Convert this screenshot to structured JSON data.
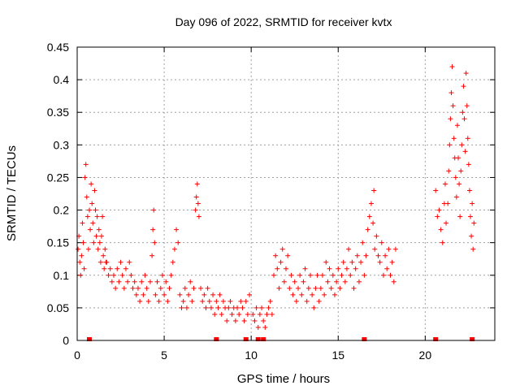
{
  "chart_data": {
    "type": "scatter",
    "title": "Day 096 of 2022, SRMTID for receiver kvtx",
    "xlabel": "GPS time / hours",
    "ylabel": "SRMTID / TECUs",
    "xlim": [
      0,
      24
    ],
    "ylim": [
      0,
      0.45
    ],
    "xticks": [
      0,
      5,
      10,
      15,
      20
    ],
    "xtick_labels": [
      "0",
      "5",
      "10",
      "15",
      "20"
    ],
    "yticks": [
      0,
      0.05,
      0.1,
      0.15,
      0.2,
      0.25,
      0.3,
      0.35,
      0.4,
      0.45
    ],
    "ytick_labels": [
      "0",
      "0.05",
      "0.1",
      "0.15",
      "0.2",
      "0.25",
      "0.3",
      "0.35",
      "0.4",
      "0.45"
    ],
    "grid": true,
    "legend": "none",
    "colors": {
      "points": "#ff0000",
      "grid": "#a0a0a0"
    },
    "marker": "plus",
    "series": [
      {
        "values": [
          [
            0.05,
            0.14
          ],
          [
            0.1,
            0.16
          ],
          [
            0.15,
            0.12
          ],
          [
            0.2,
            0.1
          ],
          [
            0.25,
            0.13
          ],
          [
            0.3,
            0.18
          ],
          [
            0.35,
            0.15
          ],
          [
            0.4,
            0.11
          ],
          [
            0.45,
            0.25
          ],
          [
            0.5,
            0.27
          ],
          [
            0.55,
            0.22
          ],
          [
            0.6,
            0.19
          ],
          [
            0.65,
            0.14
          ],
          [
            0.7,
            0.2
          ],
          [
            0.75,
            0.17
          ],
          [
            0.8,
            0.24
          ],
          [
            0.85,
            0.21
          ],
          [
            0.9,
            0.18
          ],
          [
            0.95,
            0.15
          ],
          [
            1.0,
            0.23
          ],
          [
            1.05,
            0.2
          ],
          [
            1.1,
            0.16
          ],
          [
            1.15,
            0.19
          ],
          [
            1.2,
            0.14
          ],
          [
            1.25,
            0.17
          ],
          [
            1.3,
            0.15
          ],
          [
            1.35,
            0.12
          ],
          [
            1.4,
            0.16
          ],
          [
            1.45,
            0.19
          ],
          [
            1.5,
            0.13
          ],
          [
            1.55,
            0.11
          ],
          [
            1.6,
            0.14
          ],
          [
            1.65,
            0.12
          ],
          [
            1.7,
            0.12
          ],
          [
            1.8,
            0.1
          ],
          [
            1.9,
            0.11
          ],
          [
            2.0,
            0.09
          ],
          [
            2.1,
            0.1
          ],
          [
            2.2,
            0.08
          ],
          [
            2.3,
            0.11
          ],
          [
            2.4,
            0.09
          ],
          [
            2.5,
            0.12
          ],
          [
            2.6,
            0.1
          ],
          [
            2.7,
            0.08
          ],
          [
            2.8,
            0.11
          ],
          [
            2.9,
            0.09
          ],
          [
            3.0,
            0.12
          ],
          [
            3.1,
            0.1
          ],
          [
            3.2,
            0.08
          ],
          [
            3.3,
            0.09
          ],
          [
            3.4,
            0.07
          ],
          [
            3.5,
            0.08
          ],
          [
            3.6,
            0.06
          ],
          [
            3.7,
            0.09
          ],
          [
            3.8,
            0.07
          ],
          [
            3.9,
            0.1
          ],
          [
            4.0,
            0.08
          ],
          [
            4.1,
            0.06
          ],
          [
            4.2,
            0.09
          ],
          [
            4.3,
            0.13
          ],
          [
            4.35,
            0.17
          ],
          [
            4.4,
            0.2
          ],
          [
            4.45,
            0.15
          ],
          [
            4.5,
            0.07
          ],
          [
            4.6,
            0.09
          ],
          [
            4.7,
            0.06
          ],
          [
            4.8,
            0.08
          ],
          [
            4.9,
            0.1
          ],
          [
            5.0,
            0.07
          ],
          [
            5.1,
            0.09
          ],
          [
            5.2,
            0.06
          ],
          [
            5.3,
            0.08
          ],
          [
            5.4,
            0.1
          ],
          [
            5.5,
            0.12
          ],
          [
            5.6,
            0.14
          ],
          [
            5.7,
            0.17
          ],
          [
            5.8,
            0.15
          ],
          [
            5.9,
            0.07
          ],
          [
            6.0,
            0.05
          ],
          [
            6.1,
            0.06
          ],
          [
            6.2,
            0.08
          ],
          [
            6.3,
            0.05
          ],
          [
            6.4,
            0.07
          ],
          [
            6.5,
            0.09
          ],
          [
            6.6,
            0.06
          ],
          [
            6.7,
            0.08
          ],
          [
            6.8,
            0.2
          ],
          [
            6.85,
            0.22
          ],
          [
            6.9,
            0.24
          ],
          [
            6.95,
            0.21
          ],
          [
            7.0,
            0.19
          ],
          [
            7.1,
            0.08
          ],
          [
            7.2,
            0.06
          ],
          [
            7.3,
            0.07
          ],
          [
            7.4,
            0.05
          ],
          [
            7.5,
            0.08
          ],
          [
            7.6,
            0.06
          ],
          [
            7.7,
            0.05
          ],
          [
            7.8,
            0.07
          ],
          [
            7.9,
            0.04
          ],
          [
            8.0,
            0.06
          ],
          [
            8.1,
            0.05
          ],
          [
            8.2,
            0.07
          ],
          [
            8.3,
            0.04
          ],
          [
            8.4,
            0.06
          ],
          [
            8.5,
            0.05
          ],
          [
            8.6,
            0.03
          ],
          [
            8.7,
            0.05
          ],
          [
            8.8,
            0.06
          ],
          [
            8.9,
            0.04
          ],
          [
            9.0,
            0.05
          ],
          [
            9.1,
            0.03
          ],
          [
            9.2,
            0.05
          ],
          [
            9.3,
            0.04
          ],
          [
            9.4,
            0.06
          ],
          [
            9.5,
            0.05
          ],
          [
            9.6,
            0.03
          ],
          [
            9.7,
            0.06
          ],
          [
            9.8,
            0.04
          ],
          [
            9.9,
            0.07
          ],
          [
            10.1,
            0.04
          ],
          [
            10.2,
            0.03
          ],
          [
            10.3,
            0.05
          ],
          [
            10.4,
            0.02
          ],
          [
            10.5,
            0.04
          ],
          [
            10.6,
            0.05
          ],
          [
            10.7,
            0.03
          ],
          [
            10.8,
            0.02
          ],
          [
            10.9,
            0.04
          ],
          [
            11.0,
            0.05
          ],
          [
            11.1,
            0.06
          ],
          [
            11.2,
            0.04
          ],
          [
            11.3,
            0.1
          ],
          [
            11.4,
            0.13
          ],
          [
            11.5,
            0.11
          ],
          [
            11.6,
            0.08
          ],
          [
            11.7,
            0.12
          ],
          [
            11.8,
            0.14
          ],
          [
            11.9,
            0.09
          ],
          [
            12.0,
            0.11
          ],
          [
            12.1,
            0.13
          ],
          [
            12.2,
            0.08
          ],
          [
            12.3,
            0.1
          ],
          [
            12.4,
            0.07
          ],
          [
            12.5,
            0.09
          ],
          [
            12.6,
            0.06
          ],
          [
            12.7,
            0.08
          ],
          [
            12.8,
            0.1
          ],
          [
            12.9,
            0.07
          ],
          [
            13.0,
            0.09
          ],
          [
            13.1,
            0.11
          ],
          [
            13.2,
            0.06
          ],
          [
            13.3,
            0.08
          ],
          [
            13.4,
            0.1
          ],
          [
            13.5,
            0.07
          ],
          [
            13.6,
            0.05
          ],
          [
            13.7,
            0.08
          ],
          [
            13.8,
            0.1
          ],
          [
            13.9,
            0.06
          ],
          [
            14.0,
            0.08
          ],
          [
            14.1,
            0.1
          ],
          [
            14.2,
            0.07
          ],
          [
            14.3,
            0.12
          ],
          [
            14.4,
            0.09
          ],
          [
            14.5,
            0.11
          ],
          [
            14.6,
            0.08
          ],
          [
            14.7,
            0.1
          ],
          [
            14.8,
            0.07
          ],
          [
            14.9,
            0.09
          ],
          [
            15.0,
            0.11
          ],
          [
            15.1,
            0.08
          ],
          [
            15.2,
            0.1
          ],
          [
            15.3,
            0.12
          ],
          [
            15.4,
            0.09
          ],
          [
            15.5,
            0.11
          ],
          [
            15.6,
            0.14
          ],
          [
            15.7,
            0.1
          ],
          [
            15.8,
            0.12
          ],
          [
            15.9,
            0.08
          ],
          [
            16.0,
            0.11
          ],
          [
            16.1,
            0.13
          ],
          [
            16.2,
            0.09
          ],
          [
            16.3,
            0.12
          ],
          [
            16.4,
            0.15
          ],
          [
            16.5,
            0.1
          ],
          [
            16.6,
            0.13
          ],
          [
            16.7,
            0.17
          ],
          [
            16.8,
            0.19
          ],
          [
            16.9,
            0.21
          ],
          [
            17.0,
            0.18
          ],
          [
            17.05,
            0.23
          ],
          [
            17.1,
            0.14
          ],
          [
            17.2,
            0.16
          ],
          [
            17.3,
            0.13
          ],
          [
            17.4,
            0.12
          ],
          [
            17.5,
            0.15
          ],
          [
            17.6,
            0.1
          ],
          [
            17.7,
            0.13
          ],
          [
            17.8,
            0.11
          ],
          [
            17.9,
            0.14
          ],
          [
            18.0,
            0.1
          ],
          [
            18.1,
            0.12
          ],
          [
            18.2,
            0.09
          ],
          [
            18.3,
            0.14
          ],
          [
            20.6,
            0.23
          ],
          [
            20.7,
            0.19
          ],
          [
            20.8,
            0.2
          ],
          [
            20.9,
            0.17
          ],
          [
            21.0,
            0.15
          ],
          [
            21.1,
            0.21
          ],
          [
            21.15,
            0.24
          ],
          [
            21.2,
            0.18
          ],
          [
            21.3,
            0.21
          ],
          [
            21.35,
            0.26
          ],
          [
            21.4,
            0.3
          ],
          [
            21.45,
            0.34
          ],
          [
            21.5,
            0.38
          ],
          [
            21.55,
            0.42
          ],
          [
            21.6,
            0.36
          ],
          [
            21.65,
            0.31
          ],
          [
            21.7,
            0.28
          ],
          [
            21.75,
            0.25
          ],
          [
            21.8,
            0.22
          ],
          [
            21.85,
            0.33
          ],
          [
            21.9,
            0.28
          ],
          [
            21.95,
            0.24
          ],
          [
            22.0,
            0.19
          ],
          [
            22.05,
            0.26
          ],
          [
            22.1,
            0.3
          ],
          [
            22.15,
            0.35
          ],
          [
            22.2,
            0.39
          ],
          [
            22.25,
            0.34
          ],
          [
            22.3,
            0.29
          ],
          [
            22.35,
            0.41
          ],
          [
            22.4,
            0.36
          ],
          [
            22.45,
            0.31
          ],
          [
            22.5,
            0.27
          ],
          [
            22.55,
            0.23
          ],
          [
            22.6,
            0.19
          ],
          [
            22.65,
            0.16
          ],
          [
            22.7,
            0.21
          ],
          [
            22.75,
            0.14
          ],
          [
            22.8,
            0.18
          ]
        ]
      }
    ],
    "gap_markers": [
      0.7,
      8.0,
      9.7,
      10.4,
      10.7,
      16.5,
      20.6,
      22.7
    ]
  }
}
